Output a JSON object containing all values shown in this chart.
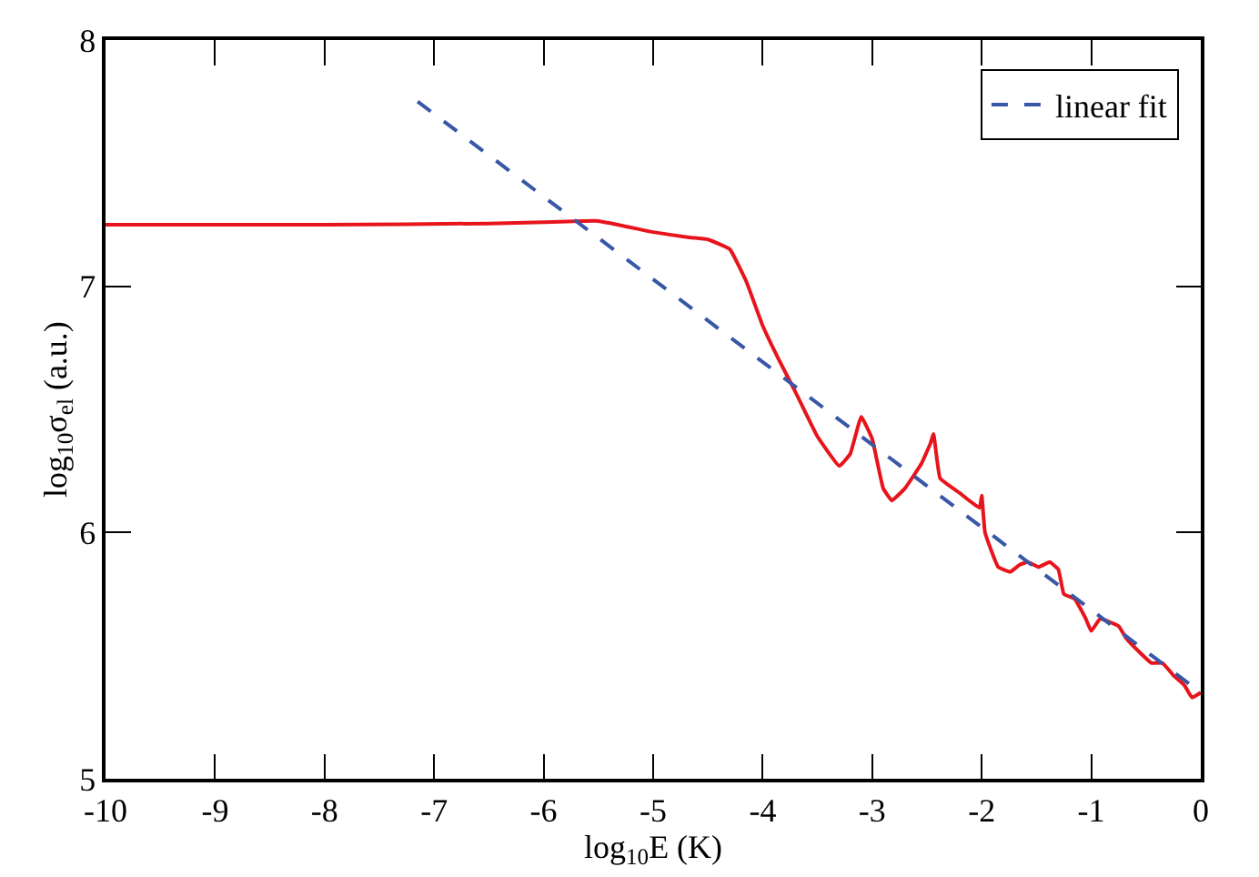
{
  "chart_data": {
    "type": "line",
    "xlabel": "log$_{10}$E (K)",
    "ylabel": "log$_{10}$σ$_{el}$ (a.u.)",
    "xlim": [
      -10,
      0
    ],
    "xticks": [
      -10,
      -9,
      -8,
      -7,
      -6,
      -5,
      -4,
      -3,
      -2,
      -1,
      0
    ],
    "ylim": [
      5,
      8
    ],
    "yticks": [
      5,
      6,
      7,
      8
    ],
    "grid": false,
    "legend": "top right",
    "series": [
      {
        "color": "#e8141c",
        "line_style": "solid",
        "x": [
          -10,
          -8,
          -6.5,
          -6,
          -5.5,
          -5,
          -4.7,
          -4.5,
          -4.3,
          -4.15,
          -4,
          -3.85,
          -3.7,
          -3.5,
          -3.3,
          -3.2,
          -3.1,
          -3.0,
          -2.9,
          -2.82,
          -2.7,
          -2.55,
          -2.47,
          -2.44,
          -2.38,
          -2.2,
          -2.02,
          -2.0,
          -1.97,
          -1.85,
          -1.74,
          -1.65,
          -1.58,
          -1.48,
          -1.38,
          -1.3,
          -1.25,
          -1.15,
          -1.05,
          -1.0,
          -0.92,
          -0.85,
          -0.75,
          -0.68,
          -0.55,
          -0.45,
          -0.35,
          -0.25,
          -0.15,
          -0.08,
          0
        ],
        "values": [
          7.25,
          7.25,
          7.255,
          7.26,
          7.265,
          7.22,
          7.2,
          7.19,
          7.15,
          7.02,
          6.84,
          6.7,
          6.57,
          6.39,
          6.27,
          6.32,
          6.47,
          6.38,
          6.18,
          6.13,
          6.18,
          6.28,
          6.36,
          6.4,
          6.22,
          6.16,
          6.1,
          6.15,
          6.0,
          5.86,
          5.84,
          5.87,
          5.88,
          5.86,
          5.88,
          5.85,
          5.75,
          5.73,
          5.65,
          5.6,
          5.65,
          5.64,
          5.62,
          5.57,
          5.51,
          5.47,
          5.47,
          5.42,
          5.38,
          5.33,
          5.35
        ]
      },
      {
        "name": "linear fit",
        "color": "#3857a6",
        "line_style": "dashed",
        "x": [
          -7.15,
          0
        ],
        "values": [
          7.75,
          5.35
        ]
      }
    ]
  }
}
